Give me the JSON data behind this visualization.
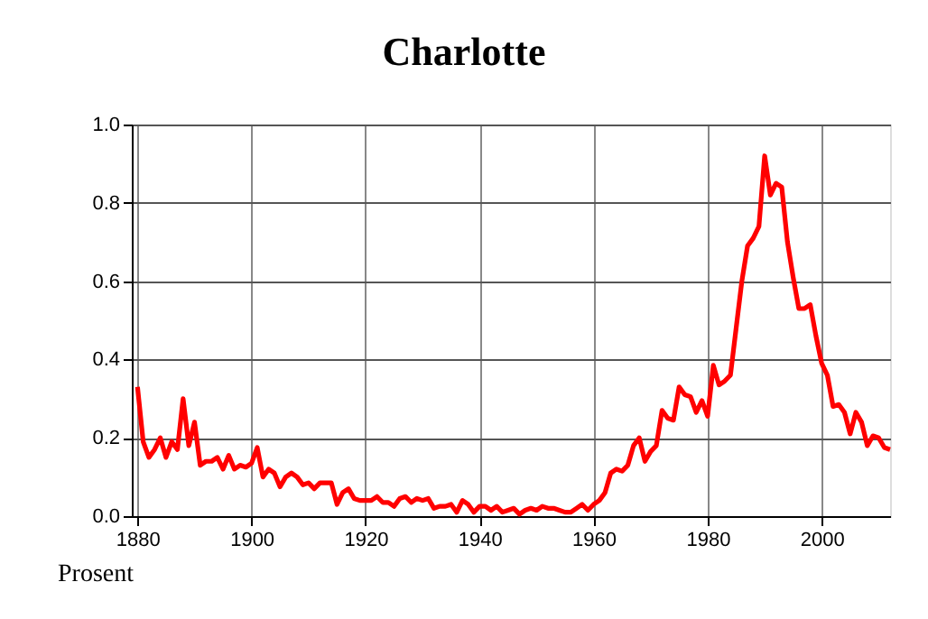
{
  "chart_data": {
    "type": "line",
    "title": "Charlotte",
    "annotations": [
      "Prosent"
    ],
    "x": [
      1880,
      1881,
      1882,
      1883,
      1884,
      1885,
      1886,
      1887,
      1888,
      1889,
      1890,
      1891,
      1892,
      1893,
      1894,
      1895,
      1896,
      1897,
      1898,
      1899,
      1900,
      1901,
      1902,
      1903,
      1904,
      1905,
      1906,
      1907,
      1908,
      1909,
      1910,
      1911,
      1912,
      1913,
      1914,
      1915,
      1916,
      1917,
      1918,
      1919,
      1920,
      1921,
      1922,
      1923,
      1924,
      1925,
      1926,
      1927,
      1928,
      1929,
      1930,
      1931,
      1932,
      1933,
      1934,
      1935,
      1936,
      1937,
      1938,
      1939,
      1940,
      1941,
      1942,
      1943,
      1944,
      1945,
      1946,
      1947,
      1948,
      1949,
      1950,
      1951,
      1952,
      1953,
      1954,
      1955,
      1956,
      1957,
      1958,
      1959,
      1960,
      1961,
      1962,
      1963,
      1964,
      1965,
      1966,
      1967,
      1968,
      1969,
      1970,
      1971,
      1972,
      1973,
      1974,
      1975,
      1976,
      1977,
      1978,
      1979,
      1980,
      1981,
      1982,
      1983,
      1984,
      1985,
      1986,
      1987,
      1988,
      1989,
      1990,
      1991,
      1992,
      1993,
      1994,
      1995,
      1996,
      1997,
      1998,
      1999,
      2000,
      2001,
      2002,
      2003,
      2004,
      2005,
      2006,
      2007,
      2008,
      2009,
      2010,
      2011,
      2012
    ],
    "series": [
      {
        "color": "#ff0000",
        "values": [
          0.33,
          0.19,
          0.15,
          0.17,
          0.2,
          0.15,
          0.19,
          0.17,
          0.3,
          0.18,
          0.24,
          0.13,
          0.14,
          0.14,
          0.15,
          0.12,
          0.155,
          0.12,
          0.13,
          0.125,
          0.135,
          0.175,
          0.1,
          0.12,
          0.11,
          0.075,
          0.1,
          0.11,
          0.1,
          0.08,
          0.085,
          0.07,
          0.085,
          0.085,
          0.085,
          0.03,
          0.06,
          0.07,
          0.045,
          0.04,
          0.04,
          0.04,
          0.05,
          0.035,
          0.035,
          0.025,
          0.045,
          0.05,
          0.035,
          0.045,
          0.04,
          0.045,
          0.02,
          0.025,
          0.025,
          0.03,
          0.01,
          0.04,
          0.03,
          0.01,
          0.025,
          0.025,
          0.015,
          0.025,
          0.01,
          0.015,
          0.02,
          0.005,
          0.015,
          0.02,
          0.015,
          0.025,
          0.02,
          0.02,
          0.015,
          0.01,
          0.01,
          0.02,
          0.03,
          0.015,
          0.03,
          0.04,
          0.06,
          0.11,
          0.12,
          0.115,
          0.13,
          0.18,
          0.2,
          0.14,
          0.165,
          0.18,
          0.27,
          0.25,
          0.245,
          0.33,
          0.31,
          0.305,
          0.265,
          0.295,
          0.255,
          0.385,
          0.335,
          0.345,
          0.36,
          0.48,
          0.6,
          0.69,
          0.71,
          0.74,
          0.92,
          0.82,
          0.85,
          0.84,
          0.7,
          0.61,
          0.53,
          0.53,
          0.54,
          0.46,
          0.39,
          0.36,
          0.28,
          0.285,
          0.265,
          0.21,
          0.265,
          0.24,
          0.18,
          0.205,
          0.2,
          0.175,
          0.17
        ]
      }
    ],
    "xlim": [
      1879,
      2012
    ],
    "xticks": [
      1880,
      1900,
      1920,
      1940,
      1960,
      1980,
      2000
    ],
    "ylim": [
      0,
      1
    ],
    "yticks": [
      {
        "value": 0,
        "label": "0.0"
      },
      {
        "value": 0.2,
        "label": "0.2"
      },
      {
        "value": 0.4,
        "label": "0.4"
      },
      {
        "value": 0.6,
        "label": "0.6"
      },
      {
        "value": 0.8,
        "label": "0.8"
      },
      {
        "value": 1,
        "label": "1.0"
      }
    ],
    "grid": true,
    "line_style": "solid",
    "marker": "none"
  }
}
